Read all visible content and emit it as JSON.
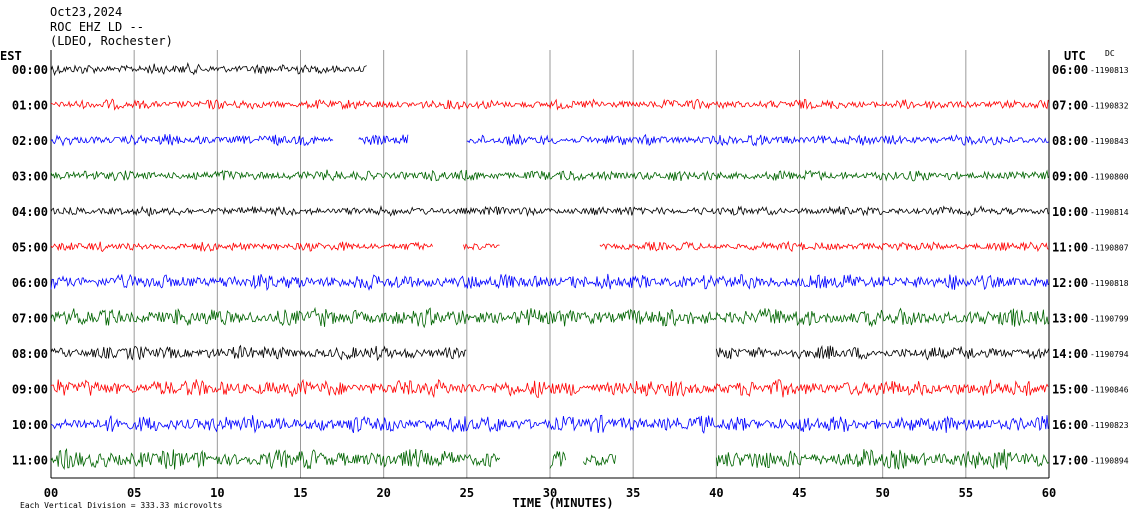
{
  "header": {
    "date": "Oct23,2024",
    "station": "ROC EHZ LD --",
    "network": "(LDEO, Rochester)"
  },
  "chart_data": {
    "type": "line",
    "title": "",
    "left_axis_label": "EST",
    "right_axis_label": "UTC",
    "dc_label": "DC",
    "xlabel": "TIME (MINUTES)",
    "xlim": [
      0,
      60
    ],
    "x_ticks": [
      "00",
      "05",
      "10",
      "15",
      "20",
      "25",
      "30",
      "35",
      "40",
      "45",
      "50",
      "55",
      "60"
    ],
    "grid": true,
    "scale_note": "Each Vertical Division =  333.33 microvolts",
    "rows": [
      {
        "est": "00:00",
        "utc": "06:00",
        "dc": "-1190813",
        "color": "#000000",
        "amplitude": 0.35,
        "segments": [
          [
            0,
            19
          ]
        ]
      },
      {
        "est": "01:00",
        "utc": "07:00",
        "dc": "-1190832",
        "color": "#ff0000",
        "amplitude": 0.32,
        "segments": [
          [
            0,
            60
          ]
        ]
      },
      {
        "est": "02:00",
        "utc": "08:00",
        "dc": "-1190843",
        "color": "#0000ff",
        "amplitude": 0.35,
        "segments": [
          [
            0,
            17
          ],
          [
            18.5,
            21.5
          ],
          [
            25,
            60
          ]
        ]
      },
      {
        "est": "03:00",
        "utc": "09:00",
        "dc": "-1190800",
        "color": "#006400",
        "amplitude": 0.35,
        "segments": [
          [
            0,
            60
          ]
        ]
      },
      {
        "est": "04:00",
        "utc": "10:00",
        "dc": "-1190814",
        "color": "#000000",
        "amplitude": 0.3,
        "segments": [
          [
            0,
            60
          ]
        ]
      },
      {
        "est": "05:00",
        "utc": "11:00",
        "dc": "-1190807",
        "color": "#ff0000",
        "amplitude": 0.3,
        "segments": [
          [
            0,
            23
          ],
          [
            24.8,
            27
          ],
          [
            33,
            60
          ]
        ]
      },
      {
        "est": "06:00",
        "utc": "12:00",
        "dc": "-1190818",
        "color": "#0000ff",
        "amplitude": 0.5,
        "segments": [
          [
            0,
            60
          ]
        ]
      },
      {
        "est": "07:00",
        "utc": "13:00",
        "dc": "-1190799",
        "color": "#006400",
        "amplitude": 0.6,
        "segments": [
          [
            0,
            60
          ]
        ]
      },
      {
        "est": "08:00",
        "utc": "14:00",
        "dc": "-1190794",
        "color": "#000000",
        "amplitude": 0.45,
        "segments": [
          [
            0,
            25
          ],
          [
            40,
            60
          ]
        ]
      },
      {
        "est": "09:00",
        "utc": "15:00",
        "dc": "-1190846",
        "color": "#ff0000",
        "amplitude": 0.55,
        "segments": [
          [
            0,
            60
          ]
        ]
      },
      {
        "est": "10:00",
        "utc": "16:00",
        "dc": "-1190823",
        "color": "#0000ff",
        "amplitude": 0.55,
        "segments": [
          [
            0,
            60
          ]
        ]
      },
      {
        "est": "11:00",
        "utc": "17:00",
        "dc": "-1190894",
        "color": "#006400",
        "amplitude": 0.65,
        "segments": [
          [
            0,
            27
          ],
          [
            30,
            31
          ],
          [
            32,
            34
          ],
          [
            40,
            60
          ]
        ]
      }
    ]
  }
}
